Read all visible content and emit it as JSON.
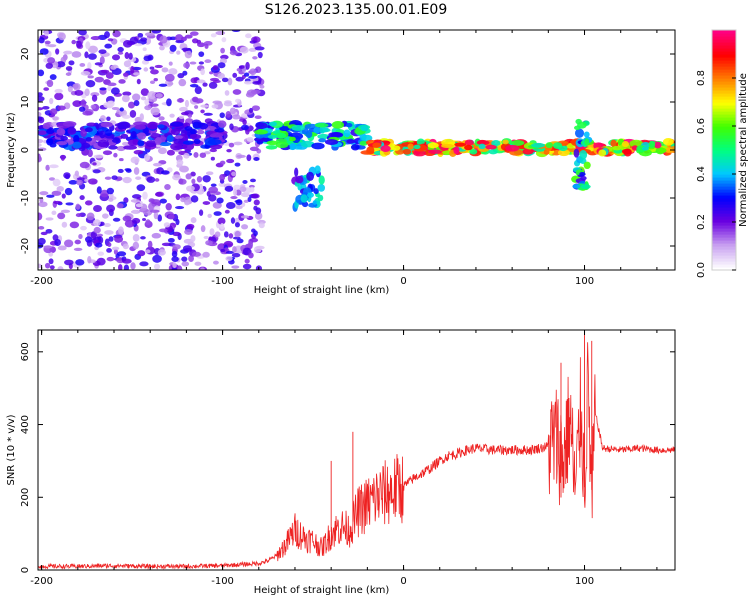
{
  "figure": {
    "title": "S126.2023.135.00.01.E09"
  },
  "chart_data": [
    {
      "type": "heatmap",
      "xlabel": "Height of straight line (km)",
      "ylabel": "Frequency (Hz)",
      "xlim": [
        -202,
        150
      ],
      "ylim": [
        -25,
        25
      ],
      "xticks": [
        -200,
        -100,
        0,
        100
      ],
      "yticks": [
        -20,
        -10,
        0,
        10,
        20
      ],
      "colorbar": {
        "label": "Normalized spectral amplitude",
        "range": [
          0,
          1
        ],
        "ticks": [
          "0.0",
          "0.2",
          "0.4",
          "0.6",
          "0.8"
        ],
        "colors": [
          "#ffffff",
          "#c8a0f0",
          "#6a00e0",
          "#0000ff",
          "#00c8ff",
          "#00ff80",
          "#40ff00",
          "#ffff00",
          "#ff8000",
          "#ff0000",
          "#ff0080"
        ]
      },
      "features": [
        {
          "region": "noise",
          "x_range": [
            -202,
            -78
          ],
          "freq_range": [
            -25,
            25
          ],
          "amplitude": 0.15
        },
        {
          "region": "band",
          "x_range": [
            -200,
            -100
          ],
          "freq_center": 3,
          "amplitude": 0.3
        },
        {
          "region": "band",
          "x_range": [
            -80,
            -20
          ],
          "freq_center": 3,
          "amplitude": 0.5
        },
        {
          "region": "feature",
          "x_range": [
            -60,
            -45
          ],
          "freq_range": [
            -12,
            -4
          ],
          "amplitude": 0.35
        },
        {
          "region": "band",
          "x_range": [
            -20,
            150
          ],
          "freq_center": 0.5,
          "amplitude": 0.85
        },
        {
          "region": "feature",
          "x_range": [
            95,
            102
          ],
          "freq_range": [
            -8,
            6
          ],
          "amplitude": 0.45
        }
      ]
    },
    {
      "type": "line",
      "xlabel": "Height of straight line (km)",
      "ylabel": "SNR (10 * v/v)",
      "xlim": [
        -202,
        150
      ],
      "ylim": [
        0,
        660
      ],
      "xticks": [
        -200,
        -100,
        0,
        100
      ],
      "yticks": [
        0,
        200,
        400,
        600
      ],
      "line_color": "#ee2222",
      "series": [
        {
          "x": [
            -202,
            -180,
            -160,
            -140,
            -120,
            -100,
            -90,
            -80,
            -75,
            -70,
            -65,
            -60,
            -55,
            -50,
            -45,
            -40,
            -35,
            -30,
            -25,
            -20,
            -15,
            -10,
            -5,
            0,
            5,
            10,
            15,
            20,
            25,
            30,
            35,
            40,
            50,
            60,
            70,
            80,
            85,
            88,
            92,
            95,
            98,
            100,
            102,
            104,
            106,
            110,
            120,
            130,
            140,
            150
          ],
          "y": [
            10,
            10,
            12,
            10,
            10,
            12,
            15,
            18,
            25,
            40,
            70,
            110,
            90,
            80,
            60,
            100,
            120,
            110,
            160,
            180,
            200,
            210,
            220,
            230,
            250,
            265,
            280,
            300,
            315,
            320,
            330,
            335,
            330,
            330,
            330,
            340,
            360,
            300,
            420,
            200,
            450,
            250,
            520,
            180,
            430,
            335,
            330,
            335,
            330,
            330
          ]
        }
      ],
      "annotations": [
        {
          "x": -28,
          "y": 380
        },
        {
          "x": -40,
          "y": 300
        },
        {
          "x": 87,
          "y": 570
        },
        {
          "x": 100,
          "y": 650
        },
        {
          "x": 104,
          "y": 630
        }
      ]
    }
  ]
}
